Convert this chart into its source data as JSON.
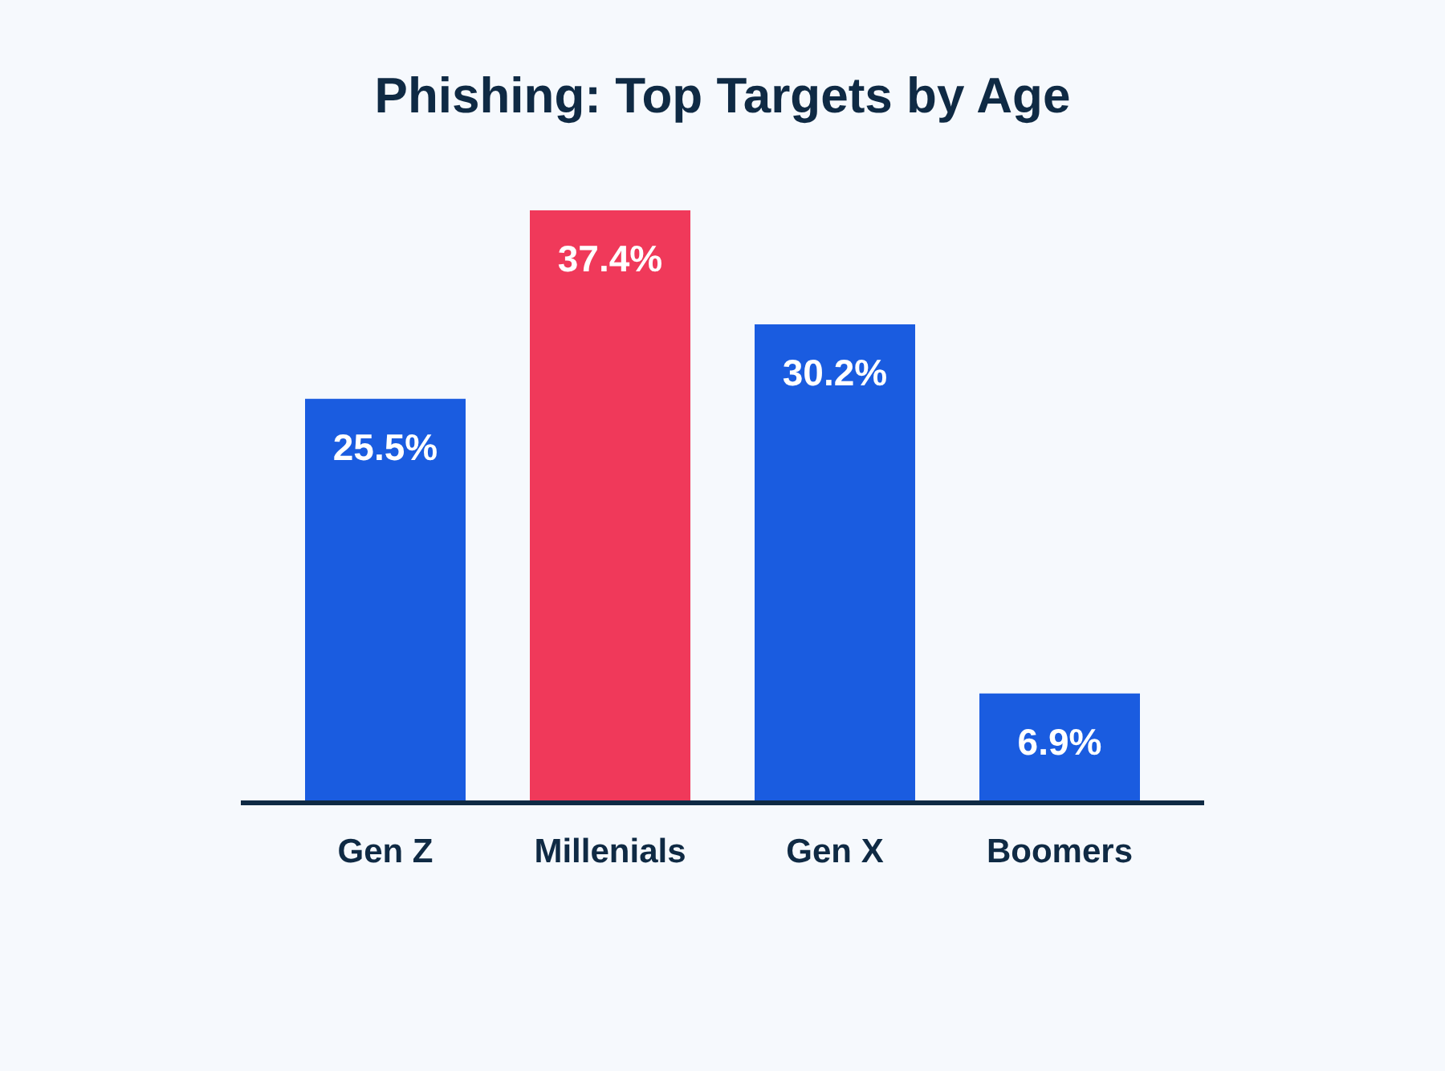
{
  "chart_data": {
    "type": "bar",
    "title": "Phishing: Top Targets by Age",
    "categories": [
      "Gen Z",
      "Millenials",
      "Gen X",
      "Boomers"
    ],
    "values": [
      25.5,
      37.4,
      30.2,
      6.9
    ],
    "colors": [
      "#1a5ce0",
      "#f0395a",
      "#1a5ce0",
      "#1a5ce0"
    ],
    "value_labels": [
      "25.5%",
      "37.4%",
      "30.2%",
      "6.9%"
    ],
    "grid": false,
    "legend": false
  }
}
